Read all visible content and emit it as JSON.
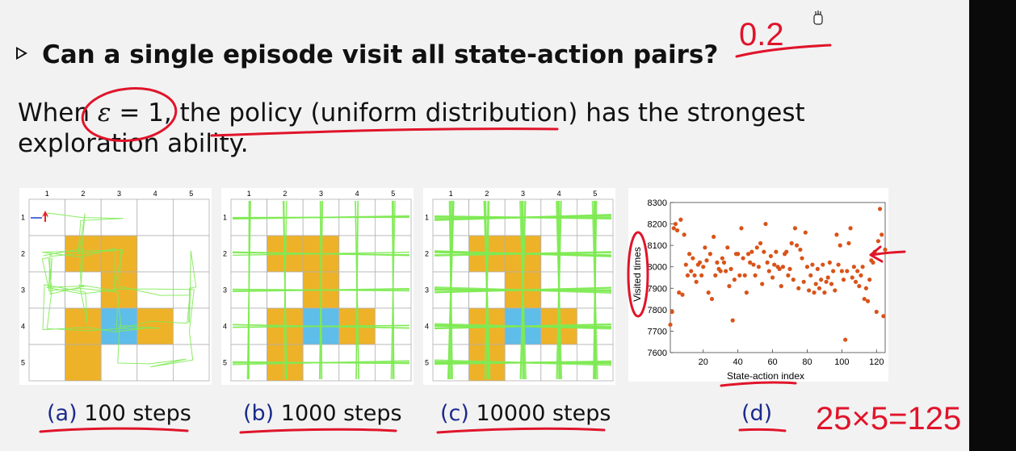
{
  "question": "Can a single episode visit all state-action pairs?",
  "sentence": {
    "before": "When ",
    "epsilon": "ε",
    "equals": " = 1,",
    "after": " the policy (uniform distribution) has the strongest",
    "line2": "exploration ability."
  },
  "grid_labels": [
    "1",
    "2",
    "3",
    "4",
    "5"
  ],
  "grid_cells": {
    "forbidden_color": "#eeb229",
    "target_color": "#5ebde9",
    "path_color": "#7fea54",
    "forbidden": [
      [
        2,
        2
      ],
      [
        2,
        3
      ],
      [
        3,
        3
      ],
      [
        4,
        2
      ],
      [
        4,
        4
      ],
      [
        5,
        2
      ]
    ],
    "target": [
      4,
      3
    ]
  },
  "captions": [
    {
      "letter": "(a)",
      "text": " 100 steps"
    },
    {
      "letter": "(b)",
      "text": " 1000 steps"
    },
    {
      "letter": "(c)",
      "text": " 10000 steps"
    },
    {
      "letter": "(d)",
      "text": ""
    }
  ],
  "chart_data": {
    "type": "scatter",
    "xlabel": "State-action index",
    "ylabel": "Visited times",
    "xlim": [
      1,
      125
    ],
    "ylim": [
      7600,
      8300
    ],
    "xticks": [
      20,
      40,
      60,
      80,
      100,
      120
    ],
    "yticks": [
      7600,
      7700,
      7800,
      7900,
      8000,
      8100,
      8200,
      8300
    ],
    "point_color": "#d95319",
    "points": [
      [
        1,
        7730
      ],
      [
        2,
        7790
      ],
      [
        3,
        8180
      ],
      [
        4,
        8200
      ],
      [
        5,
        8170
      ],
      [
        6,
        7880
      ],
      [
        7,
        8220
      ],
      [
        8,
        7870
      ],
      [
        9,
        8150
      ],
      [
        10,
        8010
      ],
      [
        11,
        7960
      ],
      [
        12,
        8060
      ],
      [
        13,
        7980
      ],
      [
        14,
        8040
      ],
      [
        15,
        7960
      ],
      [
        16,
        7930
      ],
      [
        17,
        8010
      ],
      [
        18,
        8020
      ],
      [
        19,
        7960
      ],
      [
        20,
        8000
      ],
      [
        21,
        8090
      ],
      [
        22,
        8030
      ],
      [
        23,
        7880
      ],
      [
        24,
        8060
      ],
      [
        25,
        7850
      ],
      [
        26,
        8140
      ],
      [
        27,
        7960
      ],
      [
        28,
        8020
      ],
      [
        29,
        7990
      ],
      [
        30,
        7980
      ],
      [
        31,
        8040
      ],
      [
        32,
        8020
      ],
      [
        33,
        7980
      ],
      [
        34,
        8090
      ],
      [
        35,
        7910
      ],
      [
        36,
        7990
      ],
      [
        37,
        7750
      ],
      [
        38,
        7940
      ],
      [
        39,
        8060
      ],
      [
        40,
        8060
      ],
      [
        41,
        7960
      ],
      [
        42,
        8180
      ],
      [
        43,
        8040
      ],
      [
        44,
        7960
      ],
      [
        45,
        7880
      ],
      [
        46,
        8060
      ],
      [
        47,
        8020
      ],
      [
        48,
        8070
      ],
      [
        49,
        8010
      ],
      [
        50,
        7960
      ],
      [
        51,
        8090
      ],
      [
        52,
        8000
      ],
      [
        53,
        8110
      ],
      [
        54,
        7920
      ],
      [
        55,
        8070
      ],
      [
        56,
        8200
      ],
      [
        57,
        8020
      ],
      [
        58,
        7980
      ],
      [
        59,
        8050
      ],
      [
        60,
        7950
      ],
      [
        61,
        8010
      ],
      [
        62,
        8070
      ],
      [
        63,
        8000
      ],
      [
        64,
        7990
      ],
      [
        65,
        7910
      ],
      [
        66,
        8000
      ],
      [
        67,
        8060
      ],
      [
        68,
        8070
      ],
      [
        69,
        7960
      ],
      [
        70,
        7990
      ],
      [
        71,
        8110
      ],
      [
        72,
        7940
      ],
      [
        73,
        8180
      ],
      [
        74,
        8100
      ],
      [
        75,
        7900
      ],
      [
        76,
        8080
      ],
      [
        77,
        8040
      ],
      [
        78,
        7930
      ],
      [
        79,
        8160
      ],
      [
        80,
        8000
      ],
      [
        81,
        7890
      ],
      [
        82,
        7960
      ],
      [
        83,
        8010
      ],
      [
        84,
        7880
      ],
      [
        85,
        7920
      ],
      [
        86,
        7990
      ],
      [
        87,
        7900
      ],
      [
        88,
        7940
      ],
      [
        89,
        8010
      ],
      [
        90,
        7880
      ],
      [
        91,
        7930
      ],
      [
        92,
        7950
      ],
      [
        93,
        8020
      ],
      [
        94,
        7920
      ],
      [
        95,
        7980
      ],
      [
        96,
        7890
      ],
      [
        97,
        8150
      ],
      [
        98,
        8010
      ],
      [
        99,
        8100
      ],
      [
        100,
        7980
      ],
      [
        101,
        7940
      ],
      [
        102,
        7660
      ],
      [
        103,
        7980
      ],
      [
        104,
        8110
      ],
      [
        105,
        8180
      ],
      [
        106,
        7950
      ],
      [
        107,
        8000
      ],
      [
        108,
        7930
      ],
      [
        109,
        7980
      ],
      [
        110,
        7910
      ],
      [
        111,
        7960
      ],
      [
        112,
        8000
      ],
      [
        113,
        7850
      ],
      [
        114,
        7900
      ],
      [
        115,
        7840
      ],
      [
        116,
        7940
      ],
      [
        117,
        8030
      ],
      [
        118,
        8020
      ],
      [
        119,
        8070
      ],
      [
        120,
        7790
      ],
      [
        121,
        8120
      ],
      [
        122,
        8270
      ],
      [
        123,
        8150
      ],
      [
        124,
        7770
      ],
      [
        125,
        8080
      ]
    ]
  },
  "annotations": {
    "top_right": "0.2",
    "bottom_right": "25×5=125"
  }
}
